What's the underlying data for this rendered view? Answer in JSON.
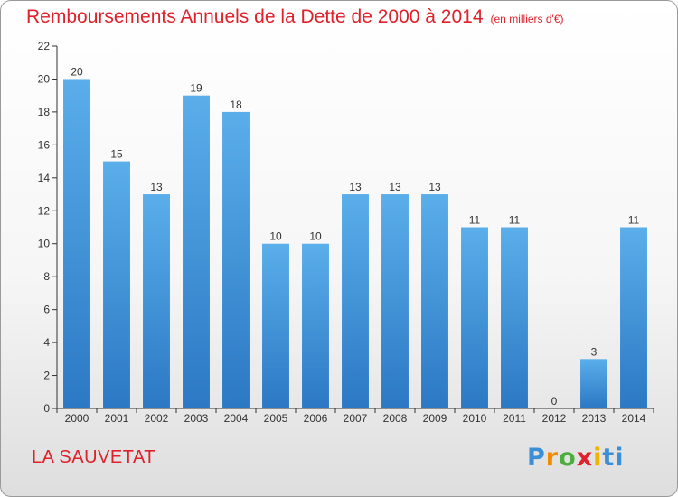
{
  "header": {
    "title": "Remboursements Annuels de la Dette de 2000 à 2014",
    "subtitle": "(en milliers d'€)"
  },
  "footer": {
    "city": "LA SAUVETAT",
    "logo_parts": [
      "P",
      "r",
      "o",
      "x",
      "i",
      "ti"
    ]
  },
  "colors": {
    "title": "#e0202a",
    "bar_top": "#5aaeea",
    "bar_bottom": "#2c78c4",
    "axis": "#333333"
  },
  "chart_data": {
    "type": "bar",
    "title": "Remboursements Annuels de la Dette de 2000 à 2014",
    "subtitle": "(en milliers d'€)",
    "categories": [
      "2000",
      "2001",
      "2002",
      "2003",
      "2004",
      "2005",
      "2006",
      "2007",
      "2008",
      "2009",
      "2010",
      "2011",
      "2012",
      "2013",
      "2014"
    ],
    "values": [
      20,
      15,
      13,
      19,
      18,
      10,
      10,
      13,
      13,
      13,
      11,
      11,
      0,
      3,
      11
    ],
    "data_labels": [
      "20",
      "15",
      "13",
      "19",
      "18",
      "10",
      "10",
      "13",
      "13",
      "13",
      "11",
      "11",
      "0",
      "3",
      "11"
    ],
    "yticks": [
      0,
      2,
      4,
      6,
      8,
      10,
      12,
      14,
      16,
      18,
      20,
      22
    ],
    "ylim": [
      0,
      22
    ],
    "xlabel": "",
    "ylabel": "",
    "grid": false,
    "legend": "none"
  }
}
